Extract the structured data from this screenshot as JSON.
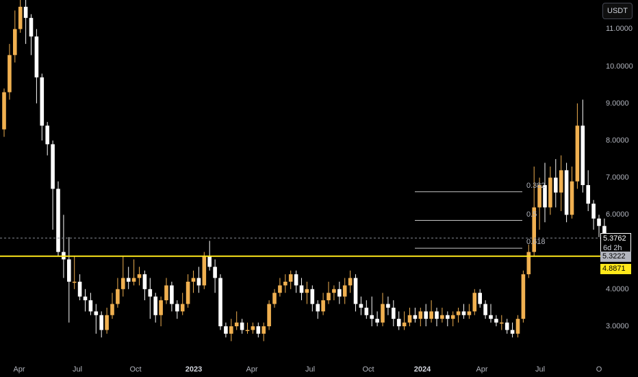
{
  "currency": "USDT",
  "colors": {
    "background": "#000000",
    "up": "#f0b050",
    "down": "#ffffff",
    "support": "#ffe81a",
    "grid_text": "#b2b5be"
  },
  "price_tags": {
    "last_price": "5.3762",
    "countdown": "6d 2h",
    "grey_tag": "5.3222",
    "yellow_tag": "4.8871"
  },
  "fib_levels": [
    {
      "label": "0.382",
      "price": 6.62
    },
    {
      "label": "0.5",
      "price": 5.85
    },
    {
      "label": "0.618",
      "price": 5.1
    }
  ],
  "support_level": 4.8871,
  "chart_data": {
    "type": "candlestick",
    "y_axis": {
      "ticks": [
        "11.0000",
        "10.0000",
        "9.0000",
        "8.0000",
        "7.0000",
        "6.0000",
        "4.0000",
        "3.0000"
      ],
      "tick_values": [
        11,
        10,
        9,
        8,
        7,
        6,
        4,
        3
      ],
      "range": [
        2.5,
        11.8
      ]
    },
    "x_axis": {
      "labels": [
        "Apr",
        "Jul",
        "Oct",
        "2023",
        "Apr",
        "Jul",
        "Oct",
        "2024",
        "Apr",
        "Jul",
        "O"
      ],
      "bold": [
        false,
        false,
        false,
        true,
        false,
        false,
        false,
        true,
        false,
        false,
        false
      ]
    },
    "candles": [
      [
        8.3,
        9.3,
        9.4,
        8.1
      ],
      [
        9.3,
        10.3,
        10.6,
        9.1
      ],
      [
        10.3,
        11.0,
        11.5,
        10.1
      ],
      [
        11.0,
        11.6,
        12.0,
        10.9
      ],
      [
        11.6,
        11.3,
        11.8,
        10.6
      ],
      [
        11.3,
        10.8,
        11.4,
        10.3
      ],
      [
        10.8,
        9.7,
        11.0,
        9.0
      ],
      [
        9.7,
        8.4,
        9.8,
        8.0
      ],
      [
        8.4,
        7.9,
        8.5,
        7.6
      ],
      [
        7.9,
        6.7,
        8.0,
        5.6
      ],
      [
        6.7,
        5.0,
        6.9,
        4.9
      ],
      [
        5.0,
        4.8,
        6.0,
        4.3
      ],
      [
        4.8,
        4.2,
        5.4,
        3.1
      ],
      [
        4.2,
        4.2,
        4.9,
        4.0
      ],
      [
        4.2,
        3.8,
        4.4,
        3.7
      ],
      [
        3.8,
        3.7,
        4.0,
        3.4
      ],
      [
        3.7,
        3.4,
        3.9,
        3.3
      ],
      [
        3.4,
        3.3,
        3.6,
        2.8
      ],
      [
        3.3,
        2.9,
        3.4,
        2.7
      ],
      [
        2.9,
        3.3,
        3.5,
        2.8
      ],
      [
        3.3,
        3.6,
        3.9,
        3.2
      ],
      [
        3.6,
        4.0,
        4.3,
        3.5
      ],
      [
        4.0,
        4.3,
        4.9,
        3.8
      ],
      [
        4.3,
        4.2,
        4.6,
        4.0
      ],
      [
        4.2,
        4.3,
        4.8,
        4.1
      ],
      [
        4.3,
        4.4,
        4.6,
        4.1
      ],
      [
        4.4,
        4.0,
        4.5,
        3.7
      ],
      [
        4.0,
        3.8,
        4.3,
        3.2
      ],
      [
        3.8,
        3.3,
        3.9,
        3.1
      ],
      [
        3.3,
        3.7,
        3.8,
        3.0
      ],
      [
        3.7,
        4.1,
        4.3,
        3.6
      ],
      [
        4.1,
        3.6,
        4.2,
        3.4
      ],
      [
        3.6,
        3.4,
        3.7,
        3.2
      ],
      [
        3.4,
        3.6,
        3.9,
        3.3
      ],
      [
        3.6,
        4.2,
        4.4,
        3.5
      ],
      [
        4.2,
        4.3,
        4.5,
        3.9
      ],
      [
        4.3,
        4.1,
        4.6,
        3.9
      ],
      [
        4.1,
        4.9,
        5.0,
        4.0
      ],
      [
        4.9,
        4.6,
        5.3,
        4.5
      ],
      [
        4.6,
        4.3,
        4.8,
        3.9
      ],
      [
        4.3,
        3.0,
        4.4,
        2.9
      ],
      [
        3.0,
        2.8,
        3.1,
        2.7
      ],
      [
        2.8,
        3.0,
        3.2,
        2.6
      ],
      [
        3.0,
        3.1,
        3.4,
        2.9
      ],
      [
        3.1,
        2.9,
        3.2,
        2.8
      ],
      [
        2.9,
        2.9,
        3.1,
        2.8
      ],
      [
        2.9,
        3.0,
        3.1,
        2.8
      ],
      [
        3.0,
        2.8,
        3.1,
        2.7
      ],
      [
        2.8,
        3.0,
        3.1,
        2.6
      ],
      [
        3.0,
        3.6,
        3.7,
        2.9
      ],
      [
        3.6,
        3.9,
        4.0,
        3.5
      ],
      [
        3.9,
        4.1,
        4.3,
        3.8
      ],
      [
        4.1,
        4.2,
        4.4,
        3.9
      ],
      [
        4.2,
        4.4,
        4.5,
        4.0
      ],
      [
        4.4,
        4.1,
        4.5,
        3.9
      ],
      [
        4.1,
        3.9,
        4.3,
        3.7
      ],
      [
        3.9,
        4.0,
        4.2,
        3.6
      ],
      [
        4.0,
        3.6,
        4.1,
        3.4
      ],
      [
        3.6,
        3.4,
        3.7,
        3.2
      ],
      [
        3.4,
        3.7,
        3.9,
        3.3
      ],
      [
        3.7,
        3.9,
        4.2,
        3.6
      ],
      [
        3.9,
        4.0,
        4.1,
        3.7
      ],
      [
        4.0,
        3.8,
        4.2,
        3.6
      ],
      [
        3.8,
        4.1,
        4.3,
        3.6
      ],
      [
        4.1,
        4.3,
        4.5,
        3.9
      ],
      [
        4.3,
        3.6,
        4.4,
        3.4
      ],
      [
        3.6,
        3.5,
        3.8,
        3.3
      ],
      [
        3.5,
        3.3,
        3.7,
        3.2
      ],
      [
        3.3,
        3.2,
        3.8,
        3.0
      ],
      [
        3.2,
        3.1,
        3.4,
        3.0
      ],
      [
        3.1,
        3.6,
        3.9,
        3.0
      ],
      [
        3.6,
        3.5,
        3.8,
        3.3
      ],
      [
        3.5,
        3.2,
        3.7,
        3.0
      ],
      [
        3.2,
        3.0,
        3.4,
        2.9
      ],
      [
        3.0,
        3.1,
        3.4,
        2.9
      ],
      [
        3.1,
        3.3,
        3.5,
        3.0
      ],
      [
        3.3,
        3.2,
        3.5,
        3.1
      ],
      [
        3.2,
        3.4,
        3.5,
        3.0
      ],
      [
        3.4,
        3.2,
        3.6,
        3.0
      ],
      [
        3.2,
        3.4,
        3.7,
        3.1
      ],
      [
        3.4,
        3.2,
        3.5,
        3.0
      ],
      [
        3.2,
        3.3,
        3.5,
        3.1
      ],
      [
        3.3,
        3.2,
        3.4,
        3.0
      ],
      [
        3.2,
        3.3,
        3.4,
        3.0
      ],
      [
        3.3,
        3.4,
        3.5,
        3.1
      ],
      [
        3.4,
        3.3,
        3.6,
        3.2
      ],
      [
        3.3,
        3.4,
        3.6,
        3.2
      ],
      [
        3.4,
        3.9,
        4.0,
        3.3
      ],
      [
        3.9,
        3.6,
        4.0,
        3.5
      ],
      [
        3.6,
        3.3,
        3.7,
        3.2
      ],
      [
        3.3,
        3.2,
        3.6,
        3.1
      ],
      [
        3.2,
        3.1,
        3.3,
        3.0
      ],
      [
        3.1,
        3.1,
        3.3,
        2.9
      ],
      [
        3.1,
        2.9,
        3.2,
        2.8
      ],
      [
        2.9,
        2.8,
        3.1,
        2.7
      ],
      [
        2.8,
        3.2,
        3.3,
        2.7
      ],
      [
        3.2,
        4.4,
        4.5,
        3.1
      ],
      [
        4.4,
        5.0,
        5.2,
        4.3
      ],
      [
        5.0,
        6.2,
        7.3,
        4.9
      ],
      [
        6.2,
        6.8,
        7.0,
        5.6
      ],
      [
        6.8,
        6.2,
        7.4,
        5.8
      ],
      [
        6.2,
        7.0,
        7.3,
        6.0
      ],
      [
        7.0,
        6.6,
        7.5,
        6.2
      ],
      [
        6.6,
        7.2,
        7.6,
        6.1
      ],
      [
        7.2,
        6.0,
        7.4,
        5.8
      ],
      [
        6.0,
        6.9,
        7.3,
        5.9
      ],
      [
        6.9,
        8.4,
        9.0,
        6.7
      ],
      [
        8.4,
        6.8,
        9.1,
        6.6
      ],
      [
        6.8,
        6.3,
        7.2,
        6.1
      ],
      [
        6.3,
        5.9,
        6.4,
        5.6
      ],
      [
        5.9,
        5.7,
        6.0,
        5.4
      ],
      [
        5.7,
        5.4,
        5.9,
        5.3
      ],
      [
        5.4,
        5.38,
        5.5,
        5.32
      ]
    ]
  }
}
